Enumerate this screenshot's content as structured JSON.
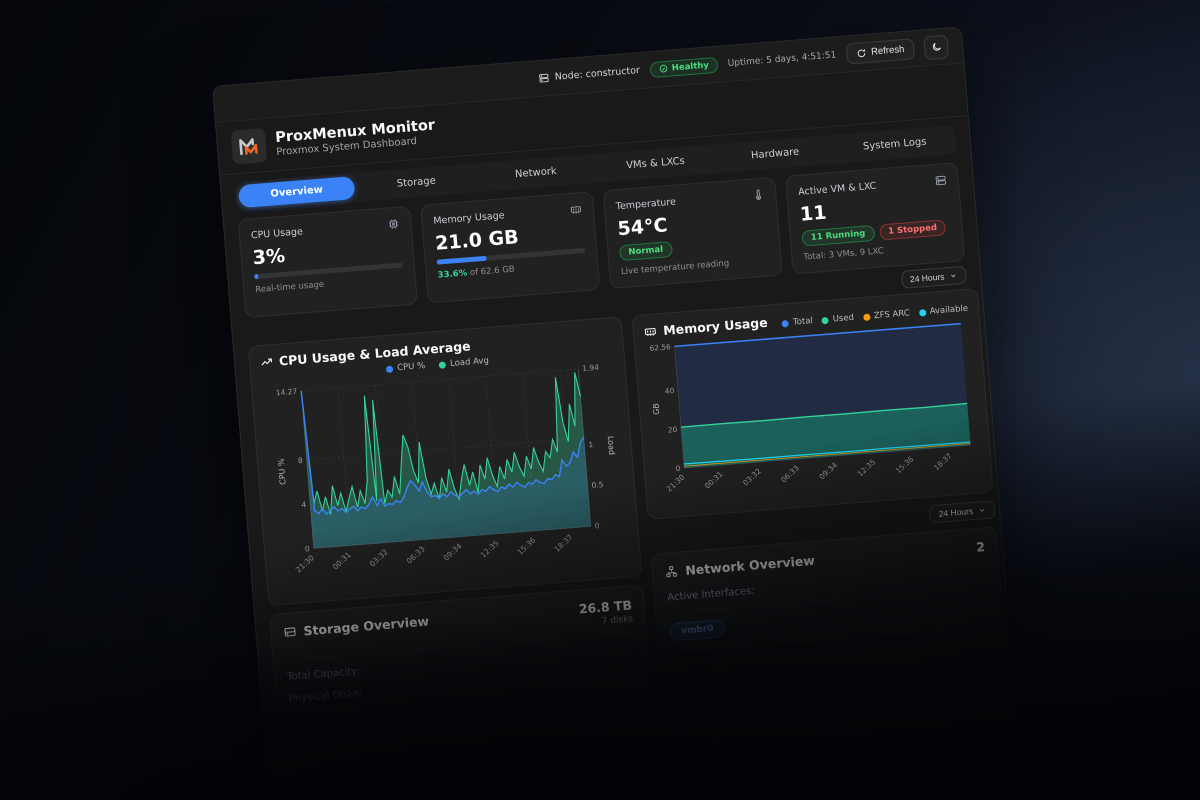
{
  "topbar": {
    "node_label": "Node: constructor",
    "health_label": "Healthy",
    "uptime": "Uptime: 5 days, 4:51:51",
    "refresh_label": "Refresh"
  },
  "header": {
    "title": "ProxMenux Monitor",
    "subtitle": "Proxmox System Dashboard"
  },
  "tabs": [
    {
      "label": "Overview",
      "active": true
    },
    {
      "label": "Storage",
      "active": false
    },
    {
      "label": "Network",
      "active": false
    },
    {
      "label": "VMs & LXCs",
      "active": false
    },
    {
      "label": "Hardware",
      "active": false
    },
    {
      "label": "System Logs",
      "active": false
    }
  ],
  "stats": {
    "cpu": {
      "title": "CPU Usage",
      "value": "3%",
      "percent": 3,
      "subtitle": "Real-time usage"
    },
    "memory": {
      "title": "Memory Usage",
      "value": "21.0 GB",
      "percent": 33.6,
      "sub_percent": "33.6%",
      "sub_rest": " of 62.6 GB"
    },
    "temperature": {
      "title": "Temperature",
      "value": "54°C",
      "badge": "Normal",
      "subtitle": "Live temperature reading"
    },
    "vms": {
      "title": "Active VM & LXC",
      "value": "11",
      "running_badge": "11 Running",
      "stopped_badge": "1 Stopped",
      "subtitle": "Total: 3 VMs, 9 LXC"
    }
  },
  "time_range": {
    "label": "24 Hours"
  },
  "time_range_2": {
    "label": "24 Hours"
  },
  "storage": {
    "title": "Storage Overview",
    "total_value": "26.8 TB",
    "disks_value": "7 disks",
    "rows": [
      {
        "label": "Total Capacity:"
      },
      {
        "label": "Physical Disks:"
      }
    ]
  },
  "network": {
    "title": "Network Overview",
    "count": "2",
    "row_label": "Active Interfaces:",
    "badge": "vmbr0"
  },
  "colors": {
    "accent_blue": "#3b82f6",
    "green": "#34d399",
    "orange": "#f59e0b",
    "cyan": "#22d3ee",
    "red": "#ef4444"
  },
  "icons": [
    "server-icon",
    "check-circle-icon",
    "refresh-icon",
    "moon-icon",
    "cpu-icon",
    "memory-icon",
    "thermometer-icon",
    "server-stack-icon",
    "chevron-down-icon",
    "trending-up-icon",
    "hard-drive-icon",
    "network-icon"
  ],
  "chart_data": [
    {
      "type": "area",
      "title": "CPU Usage & Load Average",
      "x_labels": [
        "21:30",
        "00:31",
        "03:32",
        "06:33",
        "09:34",
        "12:35",
        "15:36",
        "18:37"
      ],
      "y_left": {
        "label": "CPU %",
        "ticks": [
          0,
          4,
          8,
          14.27
        ],
        "max": 14.27
      },
      "y_right": {
        "label": "Load",
        "ticks": [
          0,
          0.5,
          1,
          1.94
        ],
        "max": 1.94
      },
      "legend": [
        {
          "name": "CPU %",
          "color": "#3b82f6"
        },
        {
          "name": "Load Avg",
          "color": "#34d399"
        }
      ],
      "series": [
        {
          "name": "CPU %",
          "axis": "left",
          "color": "#3b82f6",
          "fill": "rgba(59,130,246,0.18)",
          "values": [
            14.2,
            3.4,
            3.1,
            3.5,
            3.0,
            3.3,
            3.6,
            3.2,
            3.4,
            3.0,
            3.3,
            3.5,
            3.1,
            3.4,
            3.2,
            3.6,
            4.2,
            3.4,
            4.0,
            3.3,
            3.5,
            3.4,
            3.7,
            3.5,
            4.0,
            4.8,
            5.4,
            5.0,
            4.4,
            5.2,
            4.3,
            3.8,
            3.9,
            3.6,
            4.0,
            3.7,
            4.1,
            3.8,
            3.6,
            3.9,
            4.2,
            3.8,
            4.0,
            3.7,
            4.1,
            3.9,
            4.3,
            4.0,
            3.8,
            4.2,
            4.0,
            4.4,
            4.1,
            4.5,
            4.2,
            4.0,
            4.4,
            4.2,
            4.6,
            4.3,
            4.2,
            4.6,
            4.5,
            4.9,
            4.7,
            6.2,
            5.6,
            5.9,
            6.8,
            6.3,
            7.6,
            8.1
          ]
        },
        {
          "name": "Load Avg",
          "axis": "right",
          "color": "#34d399",
          "fill": "rgba(52,211,153,0.30)",
          "values": [
            1.94,
            0.55,
            0.7,
            0.45,
            0.62,
            0.4,
            0.75,
            0.5,
            0.65,
            0.42,
            0.58,
            0.72,
            0.46,
            0.66,
            0.5,
            0.78,
            1.82,
            0.52,
            1.76,
            0.48,
            0.64,
            0.55,
            0.8,
            0.58,
            0.95,
            1.3,
            1.15,
            0.85,
            0.7,
            1.2,
            0.75,
            0.55,
            0.68,
            0.48,
            0.74,
            0.56,
            0.84,
            0.6,
            0.46,
            0.7,
            0.88,
            0.62,
            0.78,
            0.52,
            0.86,
            0.68,
            0.94,
            0.72,
            0.58,
            0.82,
            0.66,
            0.9,
            0.74,
            0.98,
            0.8,
            0.68,
            0.92,
            0.76,
            1.02,
            0.84,
            0.72,
            0.96,
            0.88,
            1.1,
            0.94,
            1.86,
            1.3,
            1.06,
            1.52,
            1.24,
            1.9,
            1.6
          ]
        }
      ]
    },
    {
      "type": "area",
      "title": "Memory Usage",
      "x_labels": [
        "21:30",
        "00:31",
        "03:32",
        "06:33",
        "09:34",
        "12:35",
        "15:36",
        "18:37"
      ],
      "y": {
        "label": "GB",
        "ticks": [
          0,
          20,
          40,
          62.56
        ],
        "max": 62.56
      },
      "legend": [
        {
          "name": "Total",
          "color": "#3b82f6"
        },
        {
          "name": "Used",
          "color": "#34d399"
        },
        {
          "name": "ZFS ARC",
          "color": "#f59e0b"
        },
        {
          "name": "Available",
          "color": "#22d3ee"
        }
      ],
      "series": [
        {
          "name": "Total",
          "color": "#3b82f6",
          "fill": "rgba(34,52,92,0.60)",
          "values": [
            62.56,
            62.56,
            62.56,
            62.56,
            62.56,
            62.56,
            62.56,
            62.56
          ]
        },
        {
          "name": "Used",
          "color": "#34d399",
          "fill": "rgba(23,140,112,0.55)",
          "values": [
            21.0,
            21.1,
            21.0,
            21.2,
            21.1,
            21.3,
            21.2,
            21.5
          ]
        },
        {
          "name": "ZFS ARC",
          "color": "#f59e0b",
          "values": [
            0.9,
            0.9,
            0.9,
            0.9,
            0.9,
            0.9,
            0.9,
            0.9
          ]
        },
        {
          "name": "Available",
          "color": "#22d3ee",
          "values": [
            2.0,
            1.9,
            1.8,
            1.8,
            1.7,
            1.8,
            1.7,
            1.6
          ]
        }
      ]
    }
  ]
}
